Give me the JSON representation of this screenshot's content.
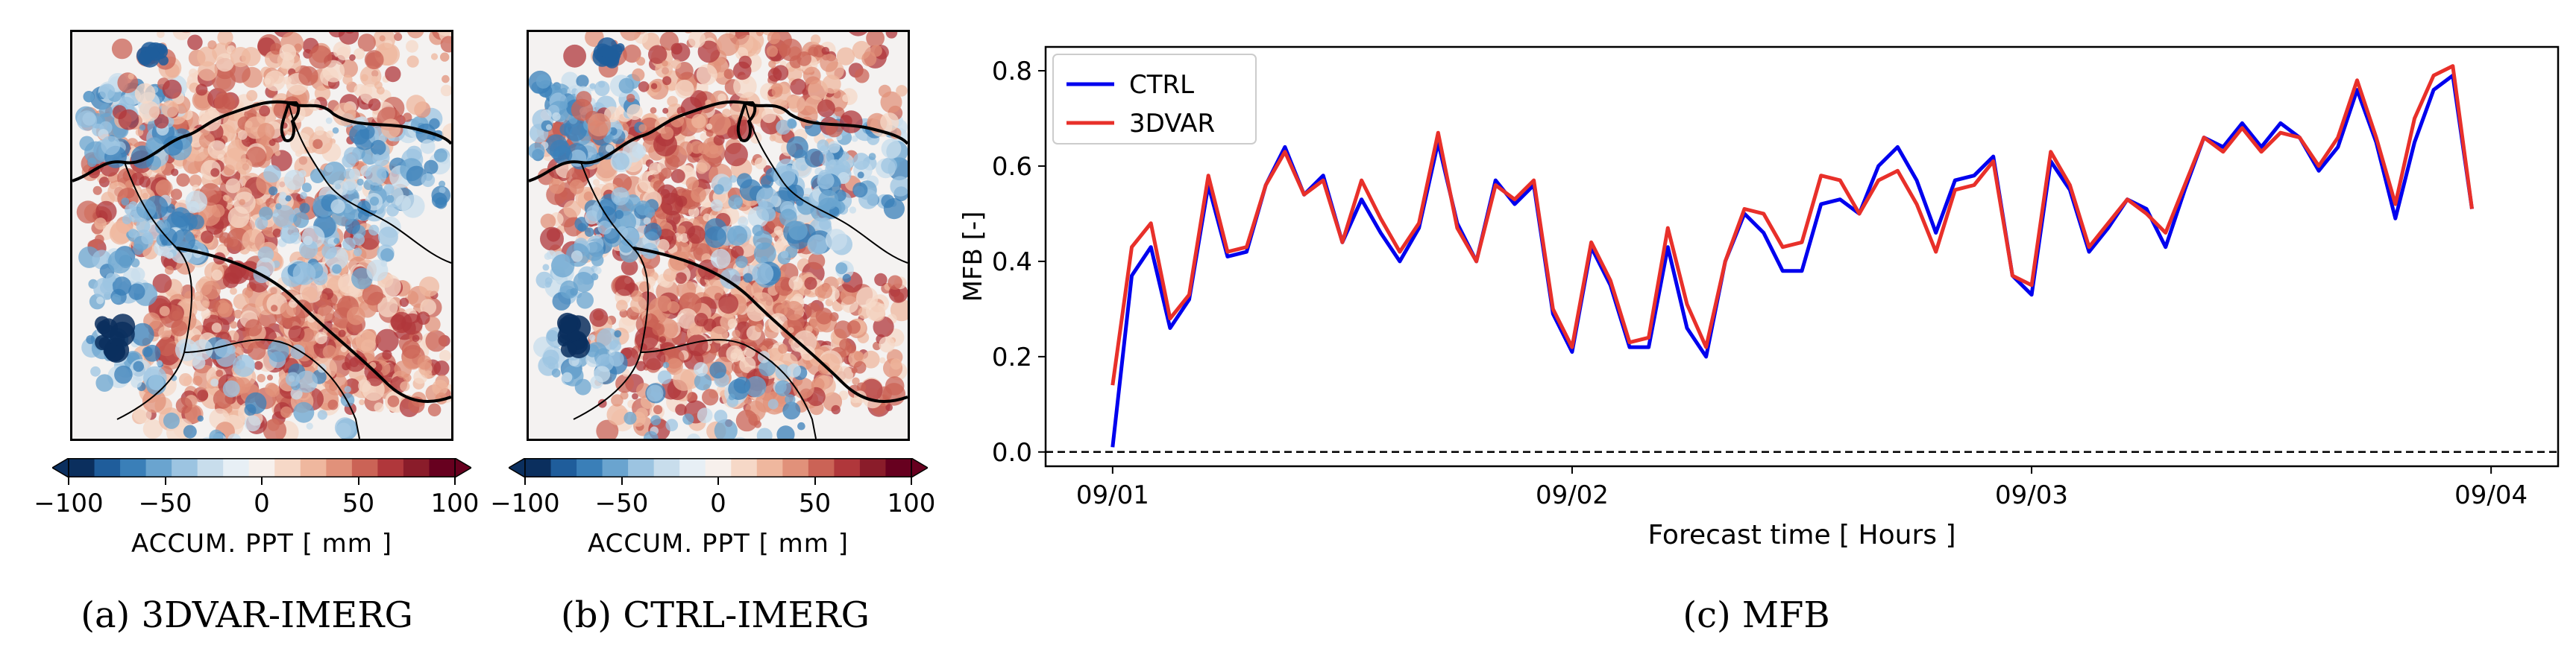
{
  "panels": [
    {
      "caption": "(a) 3DVAR-IMERG",
      "cbar_label": "ACCUM. PPT  [ mm ]",
      "cbar_ticks": [
        "−100",
        "−50",
        "0",
        "50",
        "100"
      ]
    },
    {
      "caption": "(b) CTRL-IMERG",
      "cbar_label": "ACCUM. PPT  [ mm ]",
      "cbar_ticks": [
        "−100",
        "−50",
        "0",
        "50",
        "100"
      ]
    }
  ],
  "colorbar_colors": [
    "#0b2f5e",
    "#1f5d9b",
    "#3a7fb8",
    "#6aa4cf",
    "#9cc4e1",
    "#c8ddec",
    "#e7eff5",
    "#f7f0ec",
    "#f6d8c7",
    "#efb79e",
    "#e1917a",
    "#cb6356",
    "#b0373b",
    "#8a1c2a",
    "#67001f"
  ],
  "chart_data": {
    "type": "line",
    "caption": "(c) MFB",
    "xlabel": "Forecast time [ Hours ]",
    "ylabel": "MFB [-]",
    "ylim": [
      -0.03,
      0.85
    ],
    "yticks": [
      0.0,
      0.2,
      0.4,
      0.6,
      0.8
    ],
    "ytick_labels": [
      "0.0",
      "0.2",
      "0.4",
      "0.6",
      "0.8"
    ],
    "xticks": [
      1,
      25,
      49,
      73
    ],
    "xtick_labels": [
      "09/01",
      "09/02",
      "09/03",
      "09/04"
    ],
    "xlim": [
      -2.5,
      76.5
    ],
    "reference_line": {
      "y": 0.0,
      "style": "dashed"
    },
    "legend": "top-left",
    "series": [
      {
        "name": "CTRL",
        "color": "#0000ee",
        "values": [
          0.01,
          0.37,
          0.43,
          0.26,
          0.32,
          0.56,
          0.41,
          0.42,
          0.56,
          0.64,
          0.54,
          0.58,
          0.44,
          0.53,
          0.46,
          0.4,
          0.47,
          0.65,
          0.48,
          0.4,
          0.57,
          0.52,
          0.56,
          0.29,
          0.21,
          0.43,
          0.35,
          0.22,
          0.22,
          0.43,
          0.26,
          0.2,
          0.4,
          0.5,
          0.46,
          0.38,
          0.38,
          0.52,
          0.53,
          0.5,
          0.6,
          0.64,
          0.57,
          0.46,
          0.57,
          0.58,
          0.62,
          0.37,
          0.33,
          0.61,
          0.55,
          0.42,
          0.47,
          0.53,
          0.51,
          0.43,
          0.55,
          0.66,
          0.64,
          0.69,
          0.64,
          0.69,
          0.66,
          0.59,
          0.64,
          0.76,
          0.65,
          0.49,
          0.65,
          0.76,
          0.79,
          0.51
        ]
      },
      {
        "name": "3DVAR",
        "color": "#e8302a",
        "values": [
          0.14,
          0.43,
          0.48,
          0.28,
          0.33,
          0.58,
          0.42,
          0.43,
          0.56,
          0.63,
          0.54,
          0.57,
          0.44,
          0.57,
          0.49,
          0.42,
          0.48,
          0.67,
          0.47,
          0.4,
          0.56,
          0.53,
          0.57,
          0.3,
          0.22,
          0.44,
          0.36,
          0.23,
          0.24,
          0.47,
          0.31,
          0.22,
          0.4,
          0.51,
          0.5,
          0.43,
          0.44,
          0.58,
          0.57,
          0.5,
          0.57,
          0.59,
          0.52,
          0.42,
          0.55,
          0.56,
          0.61,
          0.37,
          0.35,
          0.63,
          0.56,
          0.43,
          0.48,
          0.53,
          0.5,
          0.46,
          0.56,
          0.66,
          0.63,
          0.68,
          0.63,
          0.67,
          0.66,
          0.6,
          0.66,
          0.78,
          0.66,
          0.52,
          0.7,
          0.79,
          0.81,
          0.51
        ]
      }
    ]
  }
}
